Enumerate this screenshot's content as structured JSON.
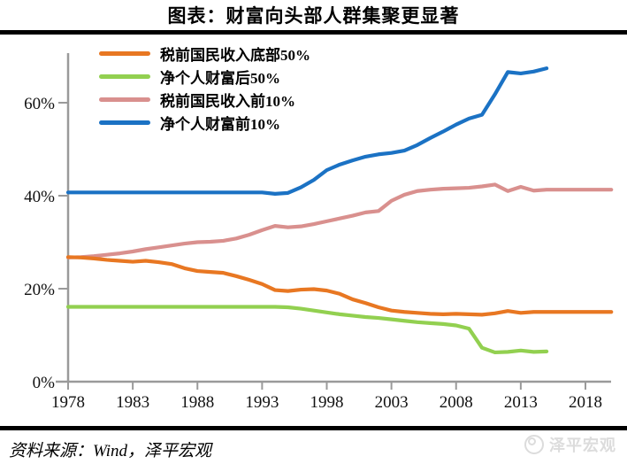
{
  "header": {
    "title": "图表：财富向头部人群集聚更显著"
  },
  "footer": {
    "source": "资料来源：Wind，泽平宏观",
    "logo_text": "泽平宏观",
    "logo_icon": "zeping-circle-mascot-icon"
  },
  "colors": {
    "axis": "#9a9a9a",
    "income_bottom50": "#e87722",
    "wealth_bottom50": "#92d050",
    "income_top10": "#d9908e",
    "wealth_top10": "#1b72c4"
  },
  "chart_data": {
    "type": "line",
    "title": "图表：财富向头部人群集聚更显著",
    "xlabel": "",
    "ylabel": "",
    "grid": false,
    "legend_position": "top-left",
    "xlim": [
      1978,
      2020
    ],
    "ylim": [
      0,
      70
    ],
    "x_ticks": [
      1978,
      1983,
      1988,
      1993,
      1998,
      2003,
      2008,
      2013,
      2018
    ],
    "y_ticks": [
      0,
      20,
      40,
      60
    ],
    "y_tick_suffix": "%",
    "series": [
      {
        "name": "税前国民收入底部50%",
        "color": "#e87722",
        "x_start": 1978,
        "values": [
          26.8,
          26.7,
          26.5,
          26.2,
          26.0,
          25.8,
          26.0,
          25.7,
          25.3,
          24.4,
          23.8,
          23.6,
          23.4,
          22.7,
          21.9,
          21.0,
          19.7,
          19.5,
          19.8,
          19.9,
          19.6,
          18.9,
          17.7,
          16.9,
          16.0,
          15.3,
          15.0,
          14.8,
          14.6,
          14.5,
          14.6,
          14.5,
          14.4,
          14.7,
          15.2,
          14.8,
          15.0,
          15.0,
          15.0,
          15.0,
          15.0,
          15.0,
          15.0
        ]
      },
      {
        "name": "净个人财富后50%",
        "color": "#92d050",
        "x_start": 1978,
        "values": [
          16.1,
          16.1,
          16.1,
          16.1,
          16.1,
          16.1,
          16.1,
          16.1,
          16.1,
          16.1,
          16.1,
          16.1,
          16.1,
          16.1,
          16.1,
          16.1,
          16.1,
          16.0,
          15.7,
          15.3,
          14.9,
          14.5,
          14.2,
          13.9,
          13.7,
          13.4,
          13.1,
          12.8,
          12.6,
          12.4,
          12.1,
          11.4,
          7.3,
          6.3,
          6.4,
          6.7,
          6.4,
          6.5
        ]
      },
      {
        "name": "税前国民收入前10%",
        "color": "#d9908e",
        "x_start": 1978,
        "values": [
          26.7,
          26.8,
          27.0,
          27.3,
          27.6,
          28.0,
          28.5,
          28.9,
          29.3,
          29.7,
          30.0,
          30.1,
          30.3,
          30.8,
          31.6,
          32.6,
          33.5,
          33.2,
          33.4,
          33.9,
          34.5,
          35.1,
          35.7,
          36.4,
          36.7,
          38.9,
          40.2,
          41.0,
          41.3,
          41.5,
          41.6,
          41.7,
          42.0,
          42.4,
          41.0,
          41.9,
          41.1,
          41.3,
          41.3,
          41.3,
          41.3,
          41.3,
          41.3
        ]
      },
      {
        "name": "净个人财富前10%",
        "color": "#1b72c4",
        "x_start": 1978,
        "values": [
          40.7,
          40.7,
          40.7,
          40.7,
          40.7,
          40.7,
          40.7,
          40.7,
          40.7,
          40.7,
          40.7,
          40.7,
          40.7,
          40.7,
          40.7,
          40.7,
          40.4,
          40.6,
          41.8,
          43.4,
          45.5,
          46.7,
          47.6,
          48.4,
          48.9,
          49.2,
          49.7,
          50.9,
          52.4,
          53.8,
          55.3,
          56.6,
          57.4,
          61.8,
          66.6,
          66.3,
          66.7,
          67.4
        ]
      }
    ]
  }
}
